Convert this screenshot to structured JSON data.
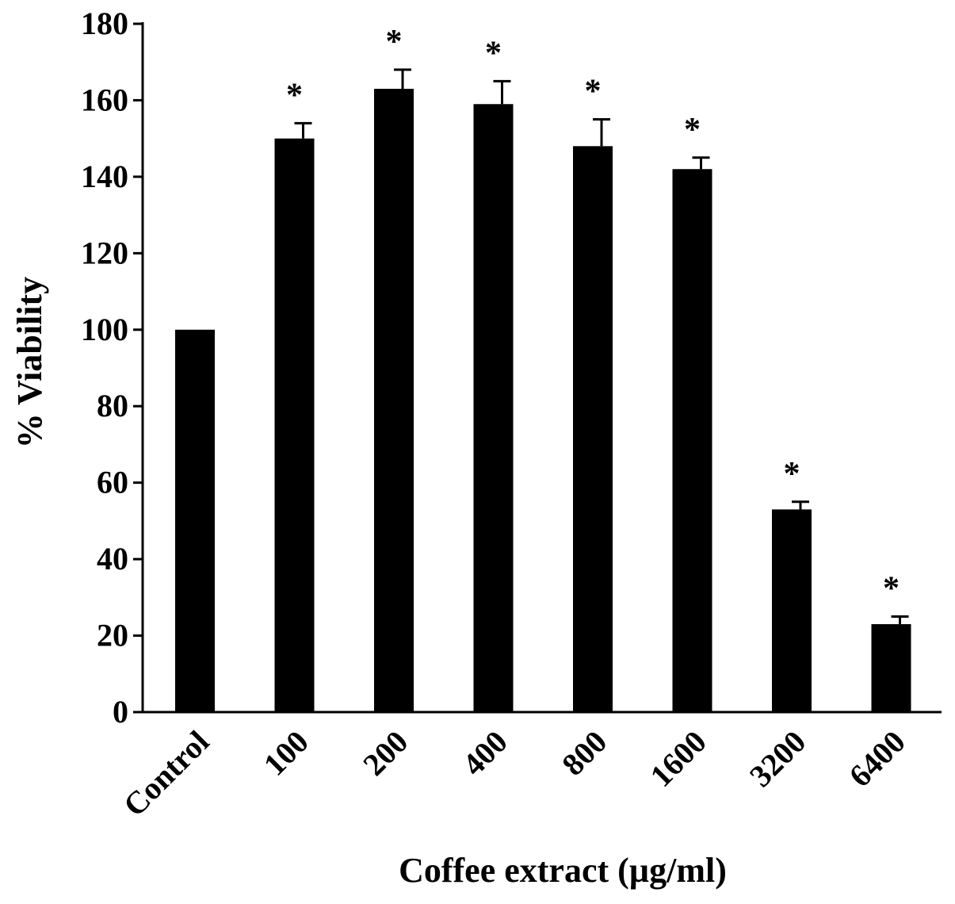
{
  "chart_data": {
    "type": "bar",
    "title": "",
    "xlabel": "Coffee extract (µg/ml)",
    "ylabel": "% Viability",
    "categories": [
      "Control",
      "100",
      "200",
      "400",
      "800",
      "1600",
      "3200",
      "6400"
    ],
    "values": [
      100,
      150,
      163,
      159,
      148,
      142,
      53,
      23
    ],
    "error": [
      0,
      4,
      5,
      6,
      7,
      3,
      2,
      2
    ],
    "significance": [
      "",
      "*",
      "*",
      "*",
      "*",
      "*",
      "*",
      "*"
    ],
    "ylim": [
      0,
      180
    ],
    "yticks": [
      0,
      20,
      40,
      60,
      80,
      100,
      120,
      140,
      160,
      180
    ],
    "grid": false,
    "legend": "none",
    "bar_color": "#000000"
  }
}
